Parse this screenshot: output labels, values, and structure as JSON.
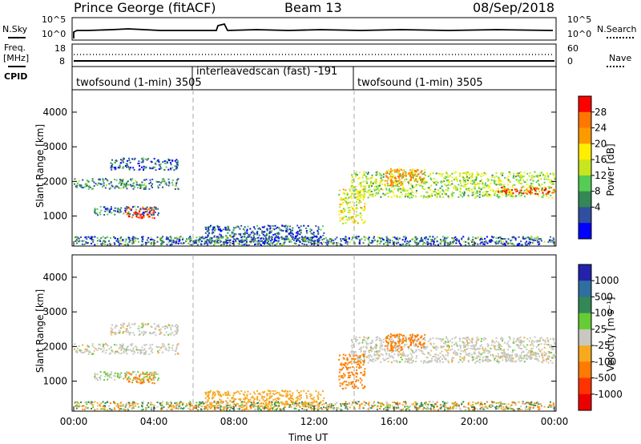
{
  "header": {
    "station": "Prince George (fitACF)",
    "beam": "Beam 13",
    "date": "08/Sep/2018"
  },
  "left_labels": {
    "nsky": "N.Sky",
    "freq": "Freq.",
    "freq_unit": "[MHz]",
    "cpid": "CPID"
  },
  "right_labels": {
    "nsearch": "N.Search",
    "nave": "Nave"
  },
  "noise_panel": {
    "left_ticks": [
      "10^5",
      "10^0"
    ],
    "right_ticks": [
      "10^5",
      "10^0"
    ]
  },
  "freq_panel": {
    "left_ticks": [
      "18",
      "8"
    ],
    "right_ticks": [
      "60",
      "0"
    ]
  },
  "cpid_segments": [
    {
      "label": "twofsound (1-min) 3505"
    },
    {
      "label": "interleavedscan (fast) -191"
    },
    {
      "label": "twofsound (1-min) 3505"
    }
  ],
  "power_colorbar": {
    "label": "Power [dB]",
    "ticks": [
      "28",
      "24",
      "20",
      "16",
      "12",
      "8",
      "4"
    ],
    "colors": [
      "#ff0000",
      "#ff7700",
      "#ff9900",
      "#ffee00",
      "#c8e61e",
      "#55cc55",
      "#338855",
      "#2f4fa0",
      "#0000ff"
    ]
  },
  "velocity_colorbar": {
    "label": "Velocity [m s⁻¹]",
    "ticks": [
      "1000",
      "500",
      "100",
      "25",
      "-25",
      "-100",
      "-500",
      "-1000"
    ],
    "colors": [
      "#2222aa",
      "#2f6fa0",
      "#338855",
      "#66cc33",
      "#c8c8c0",
      "#f7a920",
      "#ff7a00",
      "#ff3300",
      "#ee0000"
    ]
  },
  "chart_data": {
    "type": "heatmap",
    "panels": [
      "Power",
      "Velocity"
    ],
    "ylabel": "Slant Range [km]",
    "xlabel": "Time UT",
    "x_ticks": [
      "00:00",
      "04:00",
      "08:00",
      "12:00",
      "16:00",
      "20:00",
      "00:00"
    ],
    "y_ticks": [
      "1000",
      "2000",
      "3000",
      "4000"
    ],
    "x_range_hours": [
      0,
      24
    ],
    "y_range_km": [
      180,
      4600
    ],
    "mode_change_hours": [
      6.0,
      14.0
    ],
    "regions": [
      {
        "t0": 0.0,
        "t1": 5.3,
        "r0": 1800,
        "r1": 2100,
        "power": 10,
        "velocity": 0
      },
      {
        "t0": 1.8,
        "t1": 5.2,
        "r0": 2350,
        "r1": 2700,
        "power": 8,
        "velocity": 0
      },
      {
        "t0": 2.5,
        "t1": 4.0,
        "r0": 950,
        "r1": 1300,
        "power": 27,
        "velocity": -120
      },
      {
        "t0": 1.0,
        "t1": 4.2,
        "r0": 1050,
        "r1": 1300,
        "power": 9,
        "velocity": 30
      },
      {
        "t0": 6.5,
        "t1": 12.5,
        "r0": 250,
        "r1": 750,
        "power": 8,
        "velocity": -60
      },
      {
        "t0": 13.8,
        "t1": 24.0,
        "r0": 1550,
        "r1": 2300,
        "power": 14,
        "velocity": 0
      },
      {
        "t0": 15.5,
        "t1": 17.5,
        "r0": 1900,
        "r1": 2400,
        "power": 22,
        "velocity": -150
      },
      {
        "t0": 13.2,
        "t1": 14.5,
        "r0": 800,
        "r1": 1800,
        "power": 16,
        "velocity": -120
      },
      {
        "t0": 21.0,
        "t1": 24.0,
        "r0": 1650,
        "r1": 1850,
        "power": 26,
        "velocity": 0
      }
    ]
  },
  "axis_labels": {
    "ylabel_top": "Slant Range [km]",
    "ylabel_bottom": "Slant Range [km]",
    "xlabel": "Time UT"
  }
}
